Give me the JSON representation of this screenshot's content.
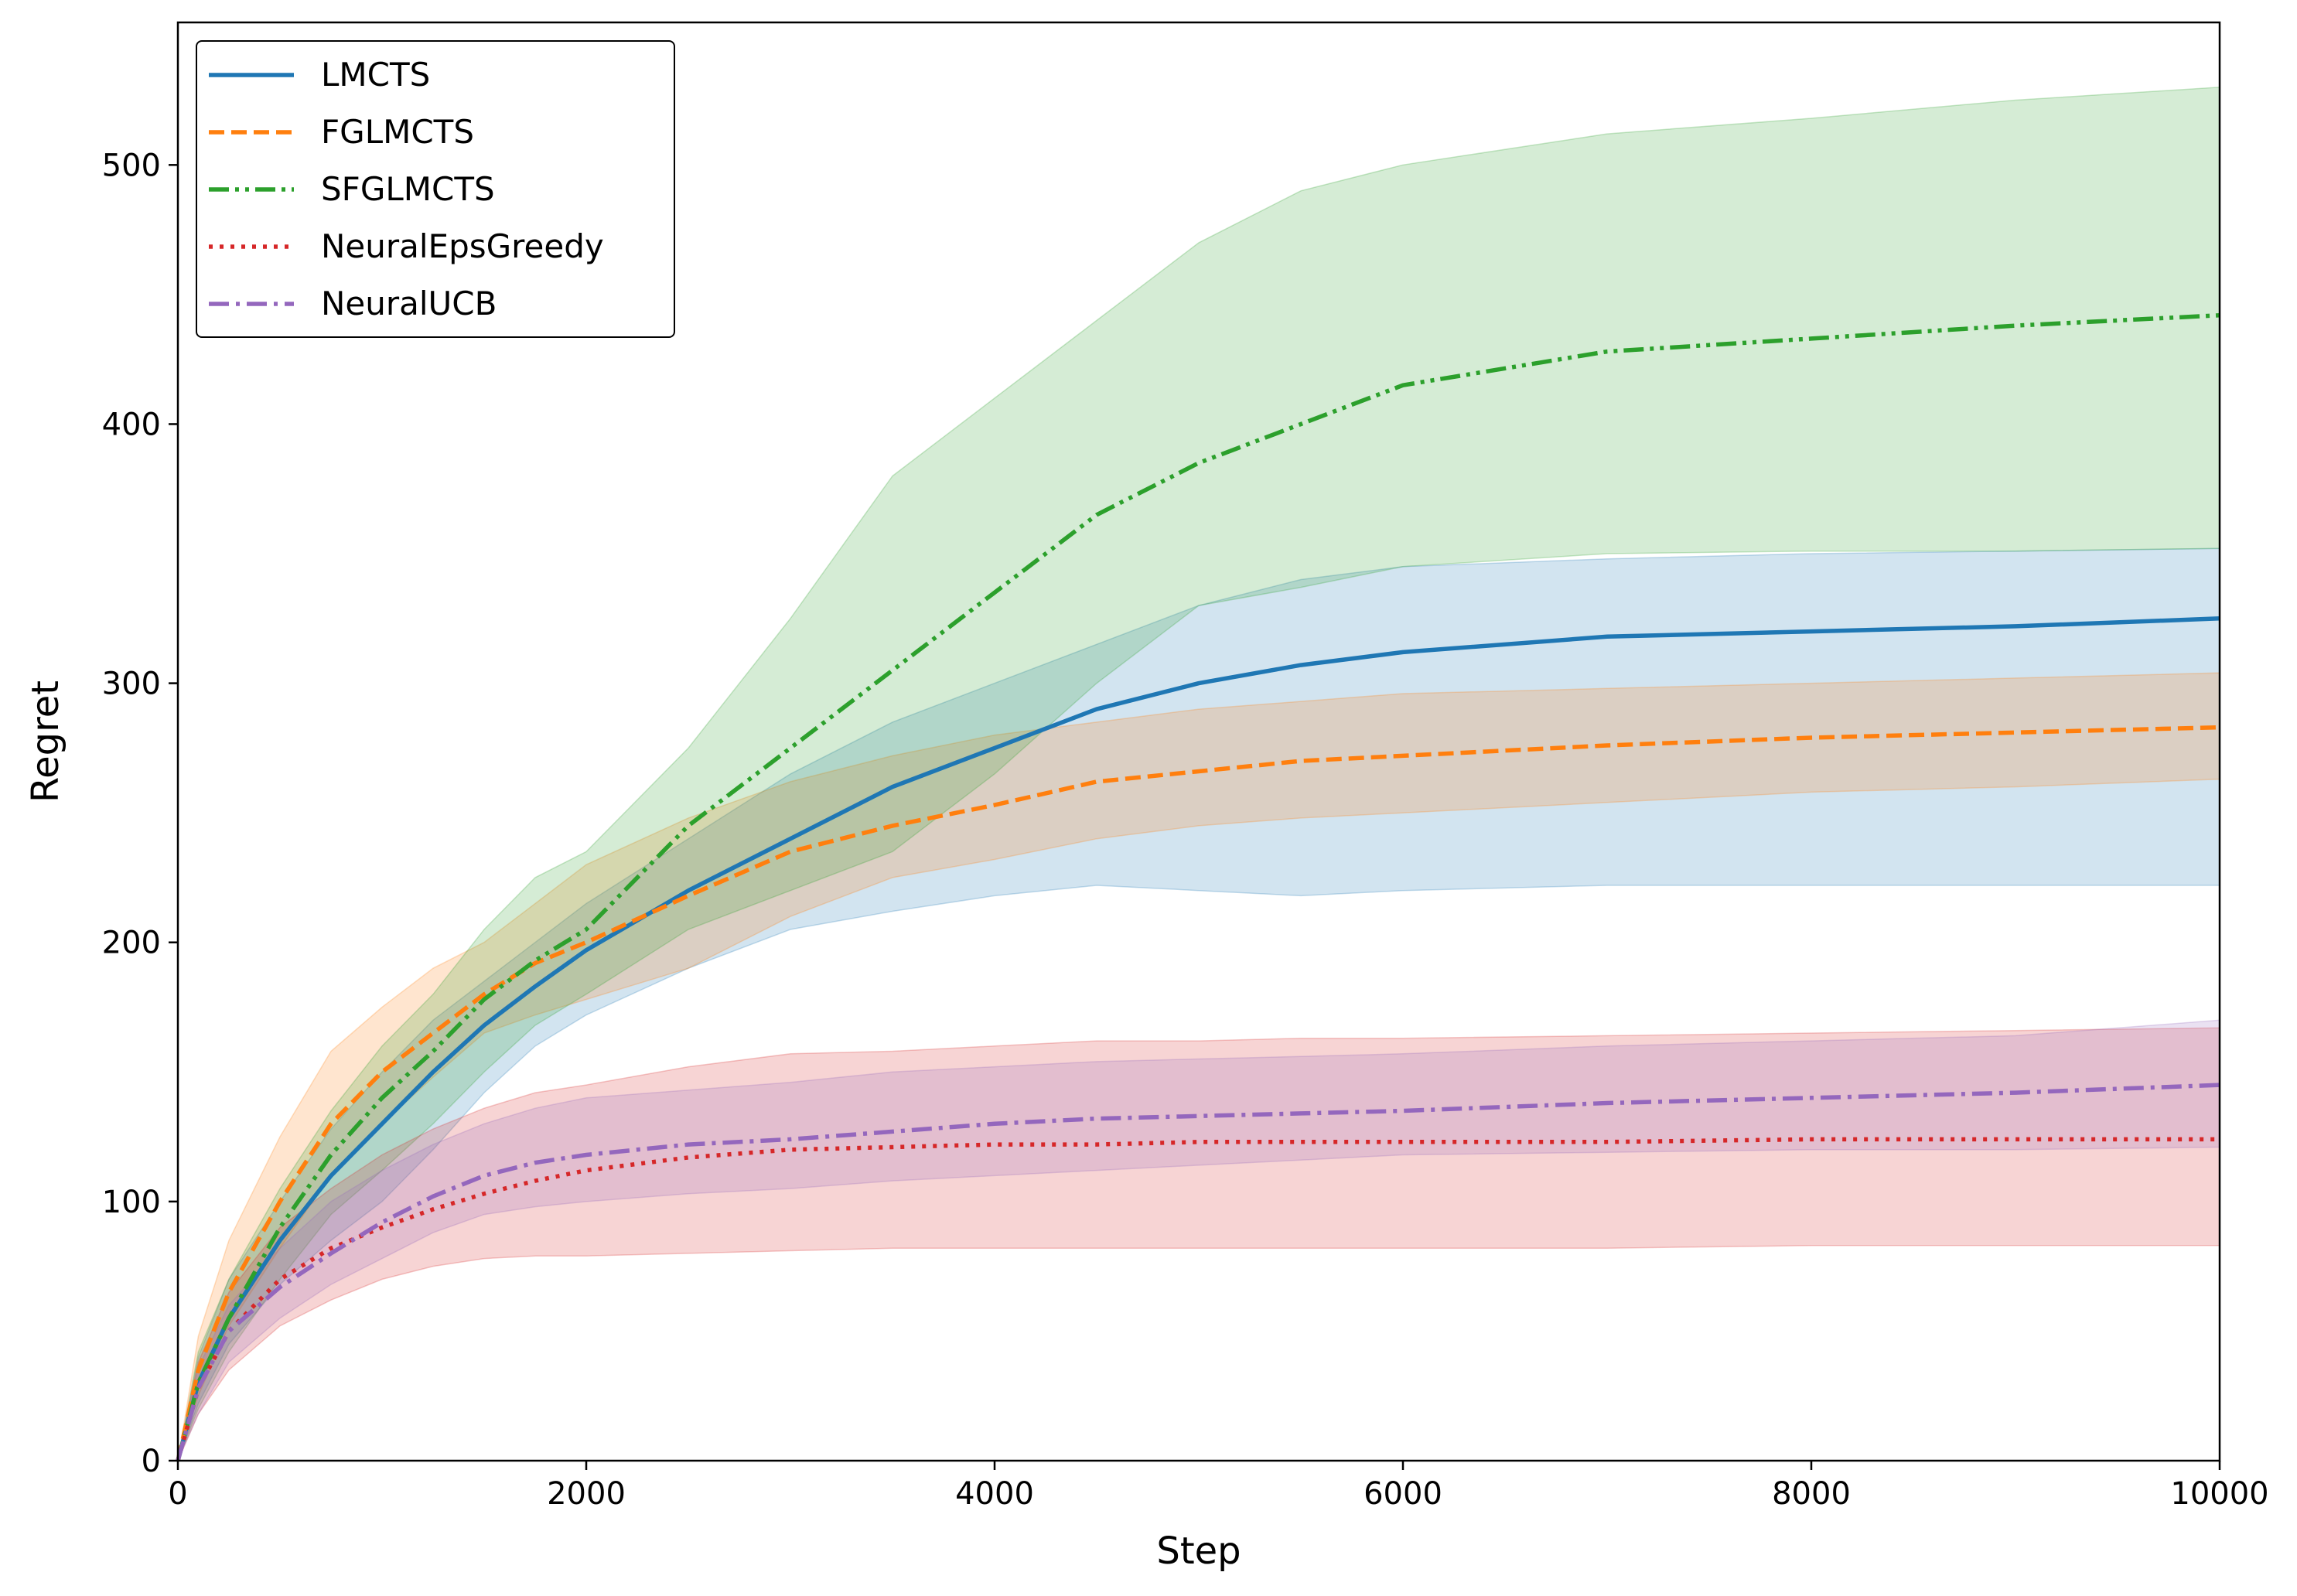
{
  "chart_data": {
    "type": "line",
    "title": "",
    "xlabel": "Step",
    "ylabel": "Regret",
    "xlim": [
      0,
      10000
    ],
    "ylim": [
      0,
      555
    ],
    "xticks": [
      0,
      2000,
      4000,
      6000,
      8000,
      10000
    ],
    "yticks": [
      0,
      100,
      200,
      300,
      400,
      500
    ],
    "grid": false,
    "legend_position": "top-left",
    "x": [
      0,
      100,
      250,
      500,
      750,
      1000,
      1250,
      1500,
      1750,
      2000,
      2500,
      3000,
      3500,
      4000,
      4500,
      5000,
      5500,
      6000,
      7000,
      8000,
      9000,
      10000
    ],
    "series": [
      {
        "name": "LMCTS",
        "color": "#1f77b4",
        "dash": "solid",
        "mean": [
          0,
          30,
          55,
          85,
          110,
          130,
          150,
          168,
          183,
          197,
          220,
          240,
          260,
          275,
          290,
          300,
          307,
          312,
          318,
          320,
          322,
          325
        ],
        "lower": [
          0,
          22,
          45,
          68,
          85,
          100,
          120,
          142,
          160,
          172,
          190,
          205,
          212,
          218,
          222,
          220,
          218,
          220,
          222,
          222,
          222,
          222
        ],
        "upper": [
          0,
          40,
          70,
          100,
          128,
          150,
          170,
          185,
          200,
          215,
          240,
          265,
          285,
          300,
          315,
          330,
          340,
          345,
          348,
          350,
          351,
          352
        ]
      },
      {
        "name": "FGLMCTS",
        "color": "#ff7f0e",
        "dash": "dashed",
        "mean": [
          0,
          35,
          65,
          100,
          130,
          150,
          165,
          180,
          192,
          200,
          218,
          235,
          245,
          253,
          262,
          266,
          270,
          272,
          276,
          279,
          281,
          283
        ],
        "lower": [
          0,
          25,
          52,
          82,
          110,
          130,
          148,
          165,
          172,
          178,
          190,
          210,
          225,
          232,
          240,
          245,
          248,
          250,
          254,
          258,
          260,
          263
        ],
        "upper": [
          0,
          48,
          85,
          125,
          158,
          175,
          190,
          200,
          215,
          230,
          248,
          262,
          272,
          280,
          285,
          290,
          293,
          296,
          298,
          300,
          302,
          304
        ]
      },
      {
        "name": "SFGLMCTS",
        "color": "#2ca02c",
        "dash": "dashdotdot",
        "mean": [
          0,
          30,
          55,
          90,
          118,
          140,
          158,
          178,
          193,
          205,
          245,
          275,
          305,
          335,
          365,
          385,
          400,
          415,
          428,
          433,
          438,
          442
        ],
        "lower": [
          0,
          20,
          42,
          70,
          95,
          112,
          130,
          150,
          168,
          180,
          205,
          220,
          235,
          265,
          300,
          330,
          337,
          345,
          350,
          351,
          351,
          352
        ],
        "upper": [
          0,
          42,
          70,
          105,
          135,
          160,
          180,
          205,
          225,
          235,
          275,
          325,
          380,
          410,
          440,
          470,
          490,
          500,
          512,
          518,
          525,
          530
        ]
      },
      {
        "name": "NeuralEpsGreedy",
        "color": "#d62728",
        "dash": "dotted",
        "mean": [
          0,
          28,
          50,
          70,
          82,
          90,
          97,
          103,
          108,
          112,
          117,
          120,
          121,
          122,
          122,
          123,
          123,
          123,
          123,
          124,
          124,
          124
        ],
        "lower": [
          0,
          18,
          35,
          52,
          62,
          70,
          75,
          78,
          79,
          79,
          80,
          81,
          82,
          82,
          82,
          82,
          82,
          82,
          82,
          83,
          83,
          83
        ],
        "upper": [
          0,
          38,
          65,
          90,
          105,
          118,
          128,
          136,
          142,
          145,
          152,
          157,
          158,
          160,
          162,
          162,
          163,
          163,
          164,
          165,
          166,
          167
        ]
      },
      {
        "name": "NeuralUCB",
        "color": "#9467bd",
        "dash": "dashdot",
        "mean": [
          0,
          28,
          50,
          67,
          80,
          92,
          102,
          110,
          115,
          118,
          122,
          124,
          127,
          130,
          132,
          133,
          134,
          135,
          138,
          140,
          142,
          145
        ],
        "lower": [
          0,
          18,
          38,
          55,
          68,
          78,
          88,
          95,
          98,
          100,
          103,
          105,
          108,
          110,
          112,
          114,
          116,
          118,
          119,
          120,
          120,
          121
        ],
        "upper": [
          0,
          36,
          60,
          82,
          100,
          112,
          122,
          130,
          136,
          140,
          143,
          146,
          150,
          152,
          154,
          155,
          156,
          157,
          160,
          162,
          164,
          170
        ]
      }
    ]
  }
}
